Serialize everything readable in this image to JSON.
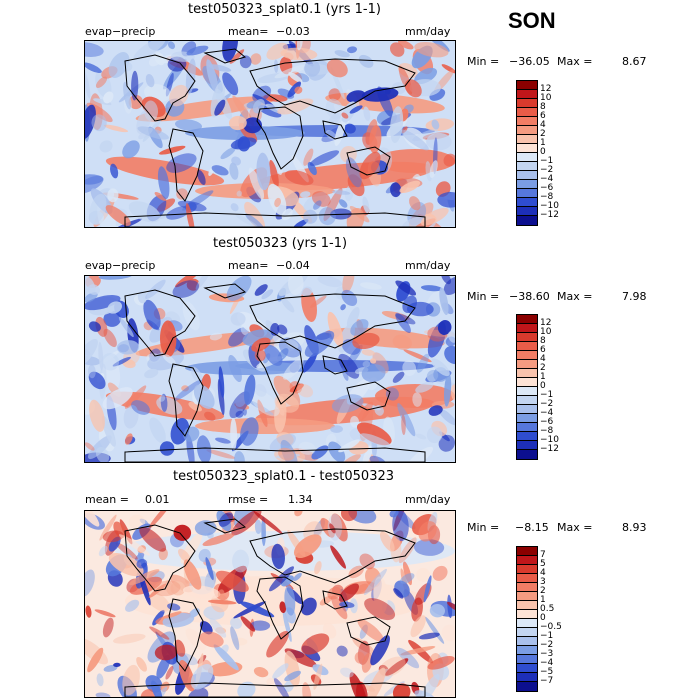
{
  "season": "SON",
  "panels": [
    {
      "title": "test050323_splat0.1 (yrs 1-1)",
      "left_label": "evap−precip",
      "mean_label": "mean=",
      "mean_value": "−0.03",
      "units": "mm/day",
      "min_label": "Min =",
      "min_value": "−36.05",
      "max_label": "Max =",
      "max_value": "8.67",
      "colorbar": {
        "levels": [
          "12",
          "10",
          "8",
          "6",
          "4",
          "2",
          "1",
          "0",
          "−1",
          "−2",
          "−4",
          "−6",
          "−8",
          "−10",
          "−12"
        ],
        "colors": [
          "#8b0000",
          "#c0161a",
          "#d93a2d",
          "#e95c48",
          "#f27d65",
          "#f59b81",
          "#f9c3ad",
          "#fde3d6",
          "#dce8f7",
          "#c3d5f1",
          "#a9c0ec",
          "#7b9de4",
          "#5677dc",
          "#2f4dd0",
          "#1d2fb9",
          "#0c0f8f"
        ]
      }
    },
    {
      "title": "test050323 (yrs 1-1)",
      "left_label": "evap−precip",
      "mean_label": "mean=",
      "mean_value": "−0.04",
      "units": "mm/day",
      "min_label": "Min =",
      "min_value": "−38.60",
      "max_label": "Max =",
      "max_value": "7.98",
      "colorbar": {
        "levels": [
          "12",
          "10",
          "8",
          "6",
          "4",
          "2",
          "1",
          "0",
          "−1",
          "−2",
          "−4",
          "−6",
          "−8",
          "−10",
          "−12"
        ],
        "colors": [
          "#8b0000",
          "#c0161a",
          "#d93a2d",
          "#e95c48",
          "#f27d65",
          "#f59b81",
          "#f9c3ad",
          "#fde3d6",
          "#dce8f7",
          "#c3d5f1",
          "#a9c0ec",
          "#7b9de4",
          "#5677dc",
          "#2f4dd0",
          "#1d2fb9",
          "#0c0f8f"
        ]
      }
    },
    {
      "title": "test050323_splat0.1 - test050323",
      "left_label": "mean =",
      "mean_value": "0.01",
      "rmse_label": "rmse =",
      "rmse_value": "1.34",
      "units": "mm/day",
      "min_label": "Min =",
      "min_value": "−8.15",
      "max_label": "Max =",
      "max_value": "8.93",
      "colorbar": {
        "levels": [
          "7",
          "5",
          "4",
          "3",
          "2",
          "1",
          "0.5",
          "0",
          "−0.5",
          "−1",
          "−2",
          "−3",
          "−4",
          "−5",
          "−7"
        ],
        "colors": [
          "#8b0000",
          "#c0161a",
          "#d93a2d",
          "#e95c48",
          "#f27d65",
          "#f59b81",
          "#f9c3ad",
          "#fde3d6",
          "#dce8f7",
          "#c3d5f1",
          "#a9c0ec",
          "#7b9de4",
          "#5677dc",
          "#2f4dd0",
          "#1d2fb9",
          "#0c0f8f"
        ]
      }
    }
  ],
  "chart_data": [
    {
      "type": "heatmap",
      "title": "test050323_splat0.1 (yrs 1-1)",
      "variable": "evap−precip",
      "units": "mm/day",
      "mean": -0.03,
      "min": -36.05,
      "max": 8.67,
      "contour_levels": [
        -12,
        -10,
        -8,
        -6,
        -4,
        -2,
        -1,
        0,
        1,
        2,
        4,
        6,
        8,
        10,
        12
      ]
    },
    {
      "type": "heatmap",
      "title": "test050323 (yrs 1-1)",
      "variable": "evap−precip",
      "units": "mm/day",
      "mean": -0.04,
      "min": -38.6,
      "max": 7.98,
      "contour_levels": [
        -12,
        -10,
        -8,
        -6,
        -4,
        -2,
        -1,
        0,
        1,
        2,
        4,
        6,
        8,
        10,
        12
      ]
    },
    {
      "type": "heatmap",
      "title": "test050323_splat0.1 - test050323",
      "units": "mm/day",
      "mean": 0.01,
      "rmse": 1.34,
      "min": -8.15,
      "max": 8.93,
      "contour_levels": [
        -7,
        -5,
        -4,
        -3,
        -2,
        -1,
        -0.5,
        0,
        0.5,
        1,
        2,
        3,
        4,
        5,
        7
      ]
    }
  ]
}
